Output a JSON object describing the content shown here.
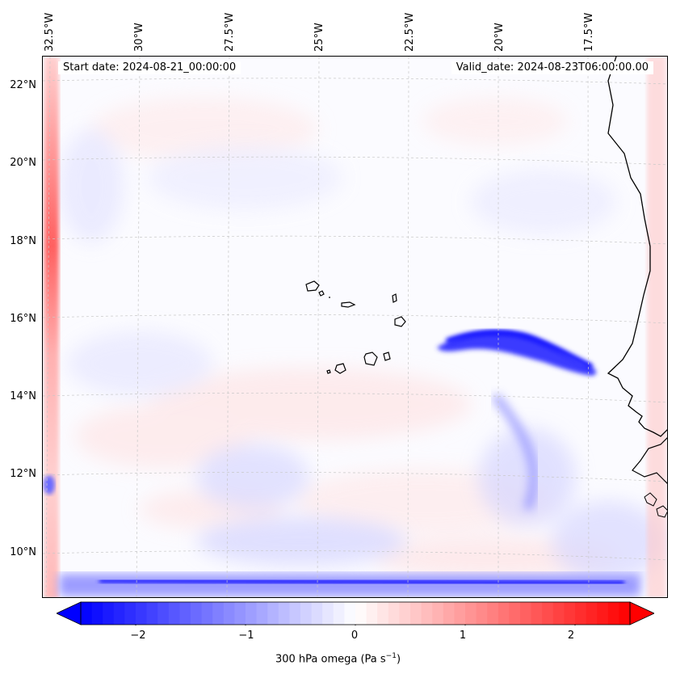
{
  "map": {
    "start_date": "Start date: 2024-08-21_00:00:00",
    "valid_date": "Valid_date: 2024-08-23T06:00:00.00",
    "lon_labels": [
      "32.5°W",
      "30°W",
      "27.5°W",
      "25°W",
      "22.5°W",
      "20°W",
      "17.5°W"
    ],
    "lat_labels": [
      "22°N",
      "20°N",
      "18°N",
      "16°N",
      "14°N",
      "12°N",
      "10°N"
    ],
    "field": "300 hPa omega",
    "colormap": "bwr",
    "coastline_color": "#000000",
    "gridline_color": "#bbbbbb",
    "features": [
      "West African coastline",
      "Cape Verde islands"
    ]
  },
  "colorbar": {
    "label_prefix": "300 hPa omega (Pa s",
    "label_exp": "−1",
    "label_suffix": ")",
    "ticks": [
      "−2",
      "−1",
      "0",
      "1",
      "2"
    ],
    "tick_values": [
      -2,
      -1,
      0,
      1,
      2
    ],
    "range": [
      -2.5,
      2.5
    ],
    "extend": "both",
    "low_color": "#0000ff",
    "mid_color": "#ffffff",
    "high_color": "#ff0000"
  }
}
